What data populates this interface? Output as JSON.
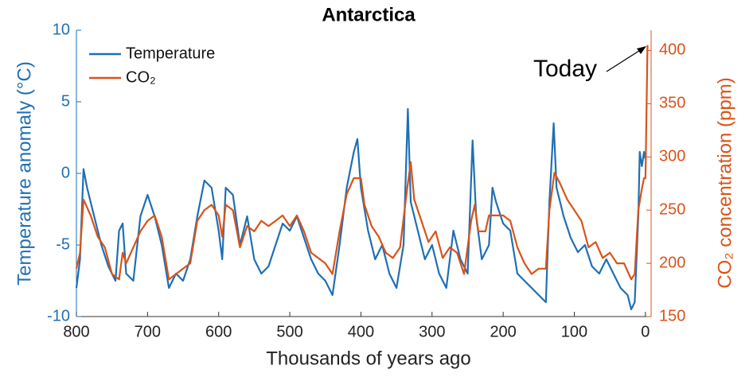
{
  "chart_data": {
    "type": "line",
    "title": "Antarctica",
    "xlabel": "Thousands of years ago",
    "ylabel": "Temperature anomaly (°C)",
    "y2label": "CO₂ concentration (ppm)",
    "annotation": "Today",
    "legend": "upper left",
    "xlim": [
      800,
      -8
    ],
    "xticks": [
      800,
      700,
      600,
      500,
      400,
      300,
      200,
      100,
      0
    ],
    "ylim": [
      -10,
      10
    ],
    "yticks": [
      -10,
      -5,
      0,
      5,
      10
    ],
    "y2lim": [
      150,
      419
    ],
    "y2ticks": [
      150,
      200,
      250,
      300,
      350,
      400
    ],
    "series": [
      {
        "name": "Temperature",
        "color": "#1f6fb4",
        "axis": "y",
        "x": [
          800,
          795,
          790,
          785,
          775,
          765,
          755,
          745,
          740,
          735,
          730,
          720,
          710,
          700,
          690,
          680,
          670,
          660,
          650,
          640,
          630,
          620,
          610,
          600,
          595,
          590,
          580,
          570,
          560,
          550,
          540,
          530,
          520,
          510,
          500,
          490,
          480,
          470,
          460,
          450,
          440,
          430,
          420,
          410,
          405,
          400,
          390,
          380,
          370,
          360,
          350,
          340,
          334,
          330,
          320,
          310,
          300,
          290,
          280,
          270,
          260,
          250,
          243,
          238,
          230,
          220,
          215,
          210,
          200,
          190,
          180,
          170,
          160,
          150,
          140,
          135,
          129,
          125,
          115,
          105,
          95,
          85,
          75,
          65,
          55,
          45,
          35,
          25,
          20,
          15,
          10,
          8,
          5,
          2,
          0
        ],
        "values": [
          -8,
          -6,
          0.3,
          -1,
          -3,
          -5,
          -6.5,
          -7.5,
          -4,
          -3.5,
          -7,
          -7.5,
          -3,
          -1.5,
          -3,
          -5,
          -8,
          -7,
          -7.5,
          -6,
          -3,
          -0.5,
          -1,
          -4,
          -6,
          -1,
          -1.5,
          -5,
          -3,
          -6,
          -7,
          -6.5,
          -5,
          -3.5,
          -4,
          -3,
          -4.5,
          -6,
          -7,
          -7.5,
          -8.5,
          -5,
          -1,
          1.5,
          2.4,
          -1,
          -4,
          -6,
          -5,
          -7,
          -8,
          -5,
          4.5,
          -2,
          -4,
          -6,
          -5,
          -7,
          -8,
          -4,
          -6,
          -7,
          2.3,
          -3,
          -6,
          -5,
          -1,
          -2,
          -3.5,
          -4,
          -7,
          -7.5,
          -8,
          -8.5,
          -9,
          -2,
          3.5,
          -1,
          -3,
          -4.5,
          -5.5,
          -5,
          -6.5,
          -7,
          -6,
          -7,
          -8,
          -8.5,
          -9.5,
          -9,
          -3,
          1.5,
          0.5,
          1.5,
          1
        ]
      },
      {
        "name": "CO₂",
        "color": "#d95319",
        "axis": "y2",
        "x": [
          800,
          795,
          790,
          780,
          770,
          760,
          750,
          740,
          735,
          730,
          720,
          710,
          700,
          690,
          680,
          670,
          660,
          650,
          640,
          630,
          620,
          610,
          600,
          595,
          590,
          580,
          570,
          560,
          550,
          540,
          530,
          520,
          510,
          500,
          490,
          480,
          470,
          460,
          450,
          440,
          430,
          420,
          410,
          400,
          395,
          385,
          375,
          365,
          355,
          345,
          335,
          330,
          325,
          315,
          305,
          295,
          285,
          275,
          265,
          255,
          245,
          240,
          235,
          225,
          220,
          210,
          200,
          190,
          180,
          170,
          160,
          150,
          140,
          135,
          128,
          120,
          110,
          100,
          90,
          80,
          70,
          60,
          50,
          40,
          30,
          20,
          15,
          10,
          5,
          2,
          0,
          -3
        ],
        "values": [
          195,
          210,
          260,
          245,
          225,
          215,
          190,
          185,
          210,
          200,
          215,
          230,
          240,
          245,
          225,
          185,
          190,
          195,
          200,
          240,
          250,
          255,
          245,
          225,
          255,
          250,
          215,
          235,
          230,
          240,
          235,
          240,
          245,
          235,
          245,
          230,
          210,
          205,
          200,
          190,
          230,
          265,
          280,
          280,
          255,
          235,
          225,
          210,
          205,
          215,
          270,
          295,
          260,
          240,
          220,
          230,
          205,
          215,
          210,
          190,
          240,
          255,
          230,
          230,
          245,
          245,
          245,
          240,
          215,
          200,
          190,
          195,
          195,
          250,
          285,
          275,
          260,
          250,
          240,
          215,
          220,
          205,
          210,
          200,
          200,
          185,
          190,
          250,
          270,
          280,
          280,
          405
        ]
      }
    ]
  }
}
